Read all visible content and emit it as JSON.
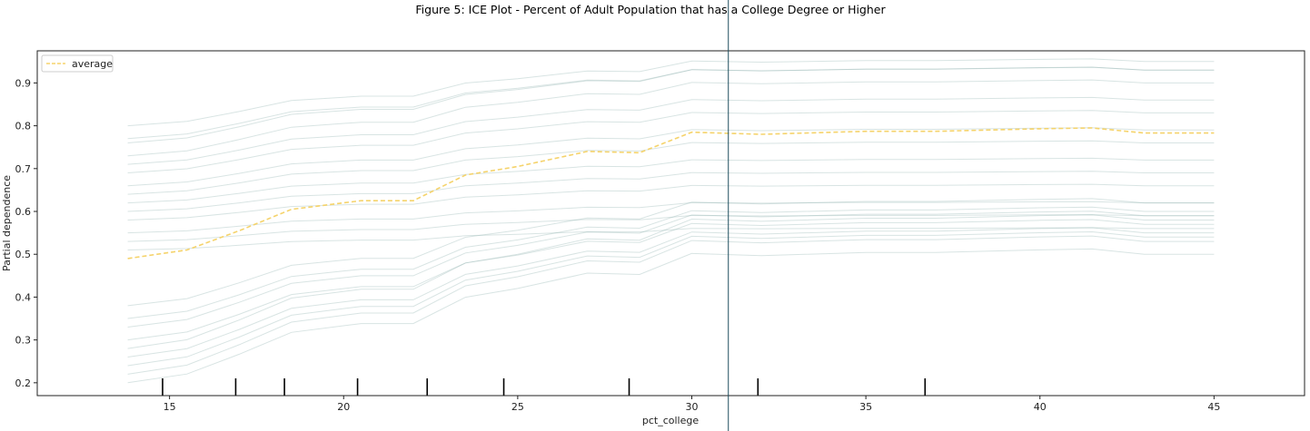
{
  "chart_data": {
    "type": "line",
    "title": "Figure 5: ICE Plot - Percent of Adult Population that has a College Degree or Higher",
    "xlabel": "pct_college",
    "ylabel": "Partial dependence",
    "xlim": [
      11.2,
      47.6
    ],
    "ylim": [
      0.17,
      0.975
    ],
    "x_ticks": [
      15,
      20,
      25,
      30,
      35,
      40,
      45
    ],
    "y_ticks": [
      0.2,
      0.3,
      0.4,
      0.5,
      0.6,
      0.7,
      0.8,
      0.9
    ],
    "grid": false,
    "legend": {
      "position": "top-left",
      "entries": [
        "average"
      ]
    },
    "colors": {
      "ice": "#8fb3b0",
      "average": "#f5d36b",
      "rug": "#000000",
      "vline": "#1f4e5f"
    },
    "x": [
      13.8,
      15.5,
      17.0,
      18.5,
      20.5,
      22.0,
      23.5,
      25.0,
      27.0,
      28.5,
      30.0,
      32.0,
      35.0,
      37.0,
      40.0,
      41.5,
      43.0,
      45.0
    ],
    "series": [
      {
        "name": "average",
        "style": "dashed",
        "values": [
          0.49,
          0.51,
          0.555,
          0.605,
          0.625,
          0.625,
          0.685,
          0.705,
          0.74,
          0.737,
          0.785,
          0.78,
          0.787,
          0.787,
          0.793,
          0.795,
          0.783,
          0.783
        ]
      }
    ],
    "ice_lines_level": [
      0.2,
      0.22,
      0.24,
      0.26,
      0.28,
      0.3,
      0.33,
      0.35,
      0.38,
      0.51,
      0.53,
      0.55,
      0.58,
      0.6,
      0.62,
      0.64,
      0.66,
      0.69,
      0.71,
      0.73,
      0.76,
      0.77,
      0.8
    ],
    "ice_lines_gain": [
      0.3,
      0.31,
      0.3,
      0.29,
      0.3,
      0.27,
      0.26,
      0.25,
      0.24,
      0.05,
      0.06,
      0.07,
      0.08,
      0.09,
      0.1,
      0.12,
      0.13,
      0.14,
      0.15,
      0.17,
      0.17,
      0.16,
      0.15
    ],
    "rug_x": [
      14.8,
      16.9,
      18.3,
      20.4,
      22.4,
      24.6,
      28.2,
      31.9,
      36.7
    ],
    "vline_x": 31.05
  }
}
